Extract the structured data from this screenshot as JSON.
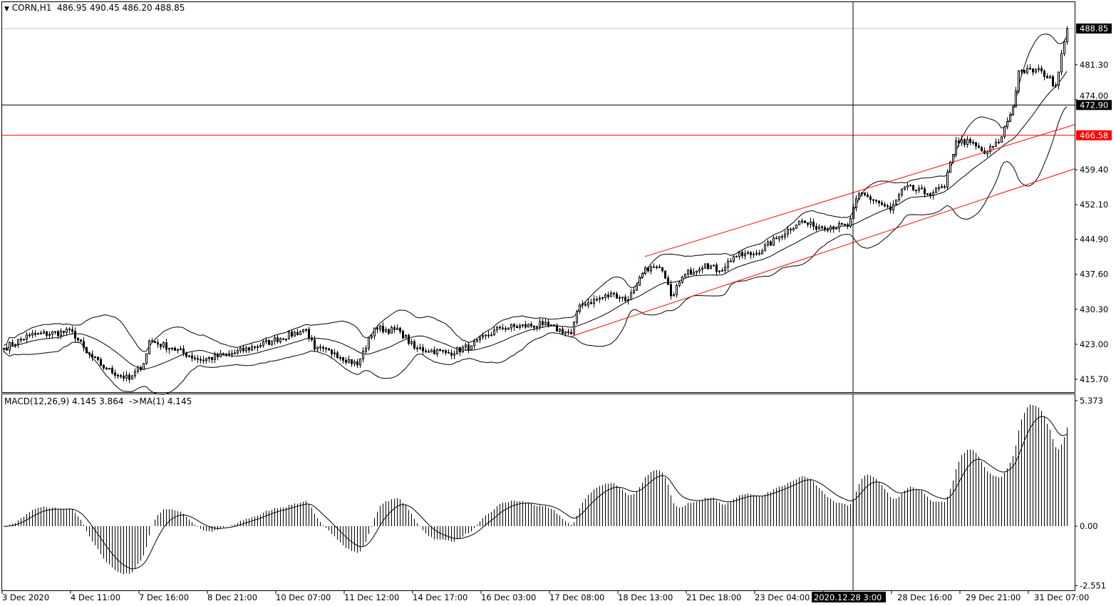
{
  "header": {
    "symbol": "CORN,H1",
    "ohlc": "486.95 490.45 486.20 488.85",
    "menu_icon": "triangle-down-icon"
  },
  "macd_header": {
    "label": "MACD(12,26,9) 4.145 3.864  ->MA(1) 4.145"
  },
  "colors": {
    "background": "#ffffff",
    "candles": "#000000",
    "level_line": "#ff0000",
    "crosshair": "#000000",
    "grid_line": "#c0c0c0"
  },
  "price_axis": {
    "ticks": [
      "481.30",
      "474.00",
      "459.40",
      "452.10",
      "444.90",
      "437.60",
      "430.30",
      "423.00",
      "415.70"
    ],
    "tick_values": [
      481.3,
      474.0,
      459.4,
      452.1,
      444.9,
      437.6,
      430.3,
      423.0,
      415.7
    ],
    "current_price": "488.85",
    "crosshair_price": "472.90",
    "level_price": "466.58"
  },
  "macd_axis": {
    "ticks": [
      "5.373",
      "0.00",
      "-2.551"
    ],
    "tick_values": [
      5.373,
      0,
      -2.551
    ]
  },
  "time_axis": {
    "labels": [
      "3 Dec 2020",
      "4 Dec 11:00",
      "7 Dec 16:00",
      "8 Dec 21:00",
      "10 Dec 07:00",
      "11 Dec 12:00",
      "14 Dec 17:00",
      "16 Dec 03:00",
      "17 Dec 08:00",
      "18 Dec 13:00",
      "21 Dec 18:00",
      "23 Dec 04:00",
      "",
      "28 Dec 16:00",
      "29 Dec 21:00",
      "31 Dec 07:00"
    ],
    "crosshair_label": "2020.12.28 3:00"
  },
  "chart_data": {
    "type": "candlestick",
    "indicators": [
      "Bollinger Bands (20)",
      "MACD(12,26,9)"
    ],
    "price_range": [
      414.5,
      494.3
    ],
    "macd_range": [
      -2.551,
      5.373
    ],
    "close_path": [
      [
        0,
        422.2
      ],
      [
        9,
        424.9
      ],
      [
        24,
        425.7
      ],
      [
        29,
        421.2
      ],
      [
        36,
        417.8
      ],
      [
        44,
        415.7
      ],
      [
        49,
        419
      ],
      [
        51,
        423.7
      ],
      [
        59,
        422.2
      ],
      [
        69,
        419.7
      ],
      [
        81,
        421.2
      ],
      [
        94,
        423.7
      ],
      [
        106,
        426.1
      ],
      [
        109,
        422
      ],
      [
        116,
        421.2
      ],
      [
        124,
        418.7
      ],
      [
        130,
        426.4
      ],
      [
        139,
        425.7
      ],
      [
        144,
        422.2
      ],
      [
        156,
        421.2
      ],
      [
        164,
        422.7
      ],
      [
        174,
        426.4
      ],
      [
        189,
        427.1
      ],
      [
        199,
        425.2
      ],
      [
        202,
        431.2
      ],
      [
        214,
        433.5
      ],
      [
        219,
        432.3
      ],
      [
        225,
        439
      ],
      [
        231,
        438.3
      ],
      [
        234,
        433.1
      ],
      [
        239,
        437.6
      ],
      [
        246,
        439.8
      ],
      [
        251,
        438.3
      ],
      [
        256,
        441.3
      ],
      [
        264,
        442
      ],
      [
        271,
        445
      ],
      [
        279,
        448.7
      ],
      [
        284,
        447.6
      ],
      [
        296,
        447.6
      ],
      [
        300,
        454.4
      ],
      [
        306,
        452.9
      ],
      [
        311,
        451
      ],
      [
        316,
        455.8
      ],
      [
        324,
        454.4
      ],
      [
        330,
        455.8
      ],
      [
        334,
        465.4
      ],
      [
        339,
        465.1
      ],
      [
        344,
        462.8
      ],
      [
        349,
        465.1
      ],
      [
        354,
        472.5
      ],
      [
        356,
        480
      ],
      [
        364,
        480
      ],
      [
        369,
        477
      ],
      [
        371,
        483.6
      ],
      [
        373,
        488.85
      ]
    ],
    "channel_lines": [
      {
        "from": [
          225,
          441.3
        ],
        "to": [
          375,
          468.8
        ]
      },
      {
        "from": [
          199,
          424.6
        ],
        "to": [
          375,
          459.6
        ]
      }
    ],
    "horizontal_levels": [
      466.58,
      472.9
    ],
    "crosshair_bar": 298
  }
}
